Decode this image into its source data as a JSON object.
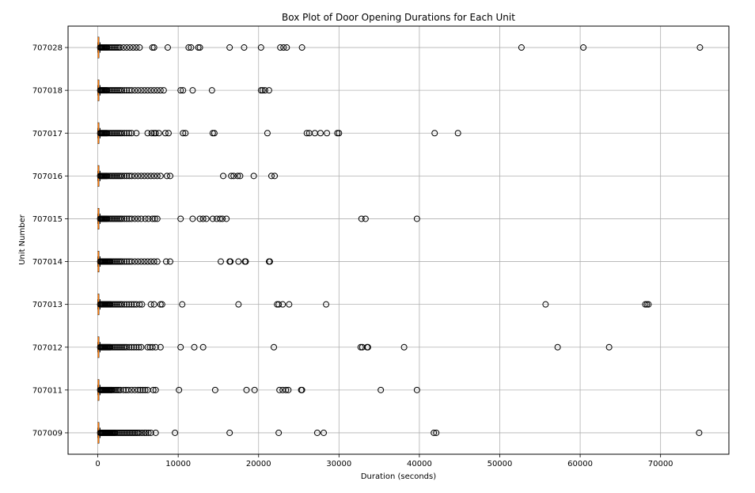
{
  "chart_data": {
    "type": "box",
    "orientation": "horizontal",
    "title": "Box Plot of Door Opening Durations for Each Unit",
    "xlabel": "Duration (seconds)",
    "ylabel": "Unit Number",
    "xlim": [
      -3700,
      78500
    ],
    "xticks": [
      0,
      10000,
      20000,
      30000,
      40000,
      50000,
      60000,
      70000
    ],
    "grid": true,
    "median_color": "#ff7f0e",
    "categories": [
      "707009",
      "707011",
      "707012",
      "707013",
      "707014",
      "707015",
      "707016",
      "707017",
      "707018",
      "707028"
    ],
    "boxes": [
      {
        "unit": "707009",
        "whisker_low": 0,
        "q1": 30,
        "median": 70,
        "q3": 130,
        "whisker_high": 280,
        "outliers": [
          300,
          400,
          500,
          600,
          700,
          800,
          900,
          1000,
          1100,
          1200,
          1300,
          1400,
          1500,
          1600,
          1700,
          1800,
          1900,
          2000,
          2100,
          2200,
          2400,
          2600,
          2800,
          3000,
          3200,
          3400,
          3600,
          3800,
          4000,
          4200,
          4400,
          4600,
          4800,
          5000,
          5200,
          5500,
          5800,
          6000,
          6300,
          6600,
          7200,
          9600,
          16400,
          22500,
          27300,
          28100,
          41800,
          42100,
          74800
        ]
      },
      {
        "unit": "707011",
        "whisker_low": 0,
        "q1": 30,
        "median": 70,
        "q3": 130,
        "whisker_high": 280,
        "outliers": [
          300,
          400,
          500,
          600,
          700,
          800,
          900,
          1000,
          1100,
          1200,
          1300,
          1400,
          1500,
          1600,
          1700,
          1800,
          2000,
          2200,
          2400,
          2600,
          2800,
          3200,
          3500,
          3800,
          4200,
          4600,
          5000,
          5300,
          5600,
          5900,
          6200,
          6900,
          7200,
          10100,
          14600,
          18500,
          19500,
          22600,
          23000,
          23400,
          23700,
          25300,
          25400,
          35200,
          39700
        ]
      },
      {
        "unit": "707012",
        "whisker_low": 0,
        "q1": 30,
        "median": 70,
        "q3": 130,
        "whisker_high": 280,
        "outliers": [
          300,
          400,
          500,
          600,
          700,
          800,
          900,
          1000,
          1100,
          1200,
          1300,
          1400,
          1500,
          1600,
          1800,
          2000,
          2200,
          2400,
          2600,
          2800,
          3000,
          3200,
          3400,
          3600,
          3900,
          4200,
          4500,
          4800,
          5100,
          5400,
          6200,
          6500,
          6800,
          7200,
          7800,
          10300,
          12000,
          13100,
          21900,
          32700,
          32900,
          33500,
          33600,
          38100,
          57200,
          63600
        ]
      },
      {
        "unit": "707013",
        "whisker_low": 0,
        "q1": 30,
        "median": 70,
        "q3": 130,
        "whisker_high": 280,
        "outliers": [
          300,
          400,
          500,
          600,
          700,
          800,
          900,
          1000,
          1100,
          1200,
          1300,
          1400,
          1500,
          1600,
          1800,
          2000,
          2200,
          2400,
          2600,
          2800,
          3000,
          3300,
          3600,
          3900,
          4200,
          4500,
          4800,
          5200,
          5500,
          6600,
          7000,
          7800,
          8000,
          10500,
          17500,
          22300,
          22500,
          23000,
          23800,
          28400,
          55700,
          68100,
          68300,
          68500
        ]
      },
      {
        "unit": "707014",
        "whisker_low": 0,
        "q1": 30,
        "median": 70,
        "q3": 130,
        "whisker_high": 280,
        "outliers": [
          300,
          400,
          500,
          600,
          700,
          800,
          900,
          1000,
          1100,
          1200,
          1300,
          1400,
          1500,
          1600,
          1800,
          2000,
          2200,
          2400,
          2600,
          2800,
          3000,
          3300,
          3600,
          3900,
          4200,
          4600,
          5000,
          5400,
          5800,
          6200,
          6600,
          7000,
          7400,
          8500,
          9000,
          15300,
          16400,
          16500,
          17500,
          18300,
          18400,
          21300,
          21400
        ]
      },
      {
        "unit": "707015",
        "whisker_low": 0,
        "q1": 30,
        "median": 70,
        "q3": 130,
        "whisker_high": 280,
        "outliers": [
          300,
          400,
          500,
          600,
          700,
          800,
          900,
          1000,
          1100,
          1200,
          1400,
          1600,
          1800,
          2000,
          2200,
          2400,
          2600,
          2800,
          3000,
          3300,
          3600,
          3900,
          4200,
          4600,
          5000,
          5400,
          5900,
          6300,
          6800,
          7100,
          7400,
          10300,
          11800,
          12700,
          13100,
          13500,
          14300,
          14800,
          15200,
          15500,
          16000,
          32800,
          33300,
          39700
        ]
      },
      {
        "unit": "707016",
        "whisker_low": 0,
        "q1": 30,
        "median": 70,
        "q3": 130,
        "whisker_high": 280,
        "outliers": [
          300,
          400,
          500,
          600,
          700,
          800,
          900,
          1000,
          1100,
          1200,
          1400,
          1600,
          1800,
          2000,
          2200,
          2400,
          2600,
          2800,
          3000,
          3300,
          3600,
          3900,
          4200,
          4600,
          5000,
          5400,
          5800,
          6200,
          6600,
          7000,
          7400,
          7800,
          8600,
          9000,
          15600,
          16600,
          16900,
          17400,
          17700,
          19400,
          21600,
          22000
        ]
      },
      {
        "unit": "707017",
        "whisker_low": 0,
        "q1": 30,
        "median": 70,
        "q3": 130,
        "whisker_high": 280,
        "outliers": [
          300,
          400,
          500,
          600,
          700,
          800,
          900,
          1000,
          1100,
          1200,
          1400,
          1600,
          1800,
          2000,
          2200,
          2400,
          2600,
          2800,
          3000,
          3300,
          3600,
          3900,
          4200,
          4800,
          6200,
          6700,
          7000,
          7200,
          7600,
          8400,
          8800,
          10600,
          10900,
          14300,
          14500,
          21100,
          26000,
          26300,
          27000,
          27700,
          28500,
          29800,
          30000,
          41900,
          44800
        ]
      },
      {
        "unit": "707018",
        "whisker_low": 0,
        "q1": 30,
        "median": 70,
        "q3": 130,
        "whisker_high": 280,
        "outliers": [
          300,
          400,
          500,
          600,
          700,
          800,
          900,
          1000,
          1100,
          1200,
          1400,
          1600,
          1800,
          2000,
          2200,
          2400,
          2600,
          2800,
          3000,
          3300,
          3600,
          3900,
          4200,
          4600,
          5000,
          5400,
          5800,
          6200,
          6600,
          7000,
          7400,
          7800,
          8200,
          10300,
          10600,
          11800,
          14200,
          20300,
          20500,
          20800,
          21300
        ]
      },
      {
        "unit": "707028",
        "whisker_low": 0,
        "q1": 30,
        "median": 70,
        "q3": 130,
        "whisker_high": 280,
        "outliers": [
          300,
          400,
          500,
          600,
          700,
          800,
          900,
          1000,
          1100,
          1200,
          1400,
          1600,
          1800,
          2000,
          2200,
          2400,
          2600,
          2800,
          3200,
          3600,
          4000,
          4400,
          4800,
          5200,
          6800,
          7000,
          8700,
          11300,
          11600,
          12500,
          12700,
          16400,
          18200,
          20300,
          22700,
          23100,
          23500,
          25400,
          52700,
          60400,
          74900
        ]
      }
    ]
  }
}
